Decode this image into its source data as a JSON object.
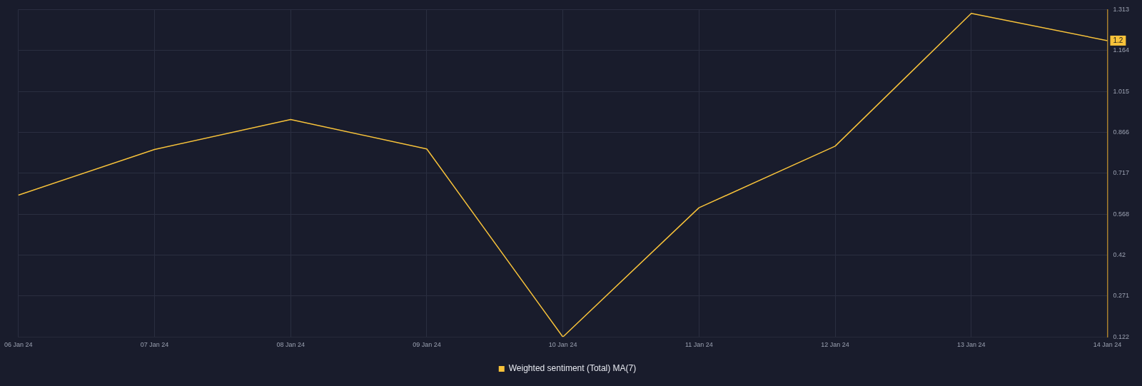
{
  "chart_data": {
    "type": "line",
    "categories": [
      "06 Jan 24",
      "07 Jan 24",
      "08 Jan 24",
      "09 Jan 24",
      "10 Jan 24",
      "11 Jan 24",
      "12 Jan 24",
      "13 Jan 24",
      "14 Jan 24"
    ],
    "series": [
      {
        "name": "Weighted sentiment (Total) MA(7)",
        "color": "#f7c23a",
        "values": [
          0.638,
          0.804,
          0.913,
          0.806,
          0.122,
          0.592,
          0.816,
          1.299,
          1.2
        ],
        "value_labels": [
          null,
          null,
          null,
          null,
          null,
          null,
          null,
          null,
          "1.2"
        ]
      }
    ],
    "ylim": [
      0.122,
      1.313
    ],
    "yticks": [
      0.122,
      0.271,
      0.42,
      0.568,
      0.717,
      0.866,
      1.015,
      1.164,
      1.313
    ],
    "grid": true,
    "legend": "bottom",
    "marker": "none",
    "line_style": "solid"
  }
}
